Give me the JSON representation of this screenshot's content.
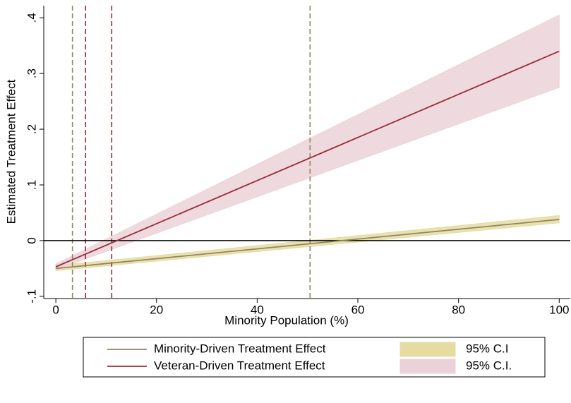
{
  "chart_data": {
    "type": "line",
    "xlabel": "Minority Population (%)",
    "ylabel": "Estimated Treatment Effect",
    "x": [
      0,
      100
    ],
    "xlim": [
      -2.4,
      102.2
    ],
    "ylim": [
      -0.104,
      0.418
    ],
    "xticks": [
      0,
      20,
      40,
      60,
      80,
      100
    ],
    "yticks": [
      {
        "value": -0.1,
        "label": "-.1"
      },
      0,
      {
        "value": 0.1,
        "label": ".1"
      },
      {
        "value": 0.2,
        "label": ".2"
      },
      {
        "value": 0.3,
        "label": ".3"
      },
      {
        "value": 0.4,
        "label": ".4"
      }
    ],
    "series": [
      {
        "name": "Minority-Driven Treatment Effect",
        "color": "#8f8663",
        "values": [
          -0.05,
          0.038
        ],
        "lower": [
          -0.054,
          0.032
        ],
        "upper": [
          -0.045,
          0.045
        ],
        "ci_name": "95% C.I",
        "ci_color": "#e6dca2"
      },
      {
        "name": "Veteran-Driven Treatment Effect",
        "color": "#9c2b3a",
        "values": [
          -0.047,
          0.34
        ],
        "lower": [
          -0.052,
          0.275
        ],
        "upper": [
          -0.042,
          0.405
        ],
        "ci_name": "95% C.I.",
        "ci_color": "#ebd2d8"
      }
    ],
    "vlines": [
      {
        "x": 3.3,
        "color": "#8f8663"
      },
      {
        "x": 5.9,
        "color": "#9c2b3a"
      },
      {
        "x": 11.1,
        "color": "#9c2b3a"
      },
      {
        "x": 50.5,
        "color": "#8f8663"
      }
    ],
    "hline": 0
  }
}
